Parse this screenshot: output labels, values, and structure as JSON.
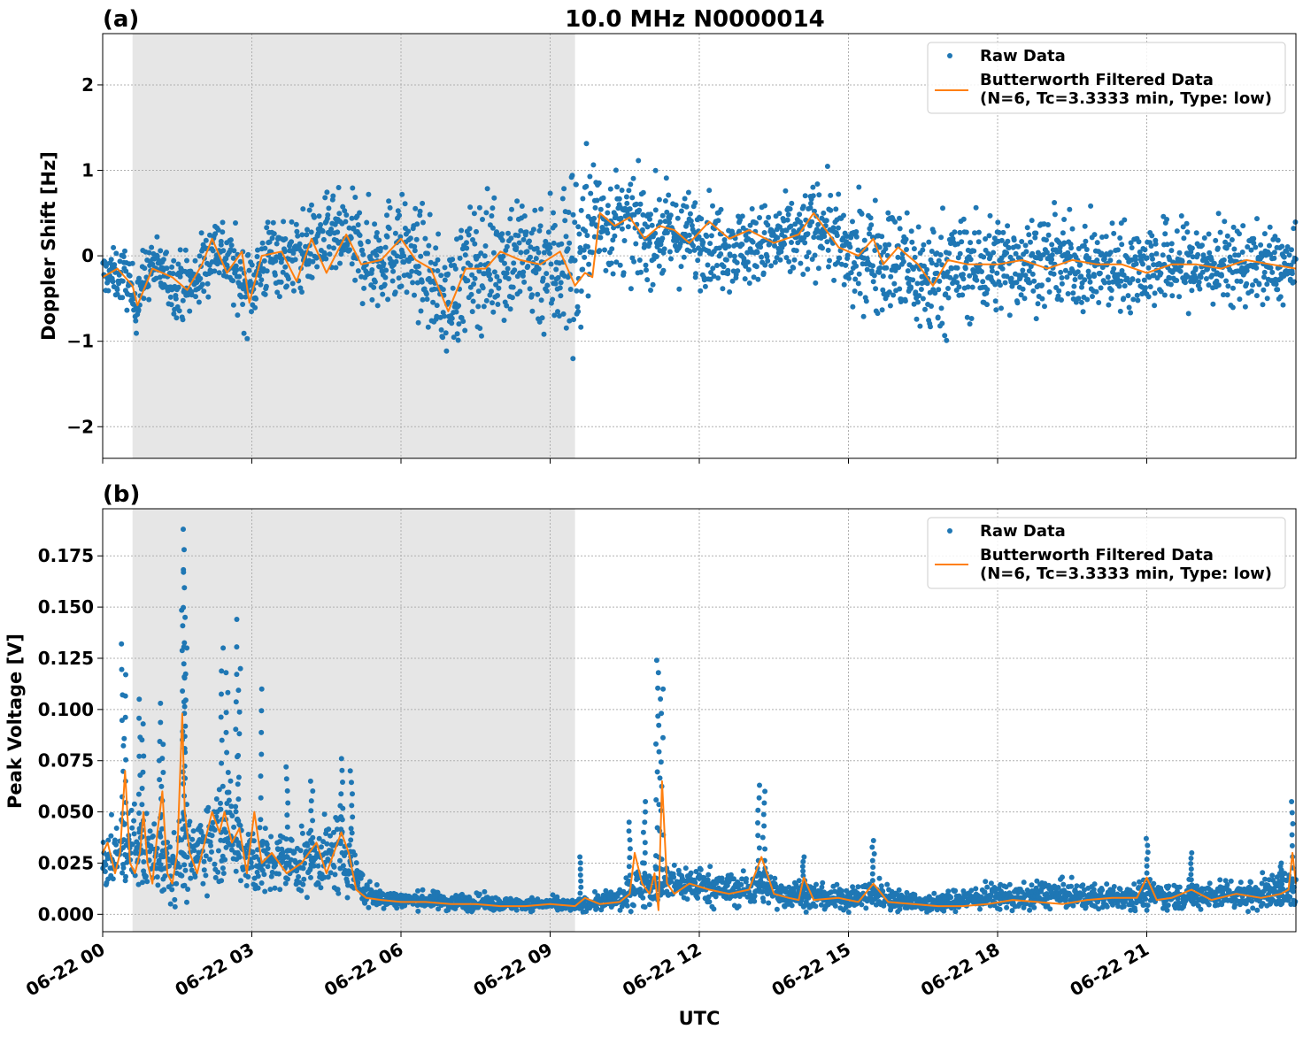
{
  "figure": {
    "title": "10.0 MHz N0000014",
    "xlabel": "UTC",
    "x_tick_labels": [
      "06-22 00",
      "06-22 03",
      "06-22 06",
      "06-22 09",
      "06-22 12",
      "06-22 15",
      "06-22 18",
      "06-22 21"
    ],
    "shaded_region_hours": [
      0.6,
      9.5
    ],
    "colors": {
      "raw": "#1f77b4",
      "filtered": "#ff7f0e",
      "shade": "#e6e6e6",
      "grid": "#b0b0b0"
    }
  },
  "chart_data": [
    {
      "type": "scatter",
      "panel_label": "(a)",
      "ylabel": "Doppler Shift [Hz]",
      "xlim_hours": [
        0,
        24
      ],
      "ylim": [
        -2.37,
        2.6
      ],
      "yticks": [
        -2,
        -1,
        0,
        1,
        2
      ],
      "ytick_labels": [
        "−2",
        "−1",
        "0",
        "1",
        "2"
      ],
      "grid": true,
      "legend": {
        "position": "top-right",
        "raw_label": "Raw Data",
        "filtered_line1": "Butterworth Filtered Data",
        "filtered_line2": "(N=6, Tc=3.3333 min, Type: low)"
      },
      "series": [
        {
          "name": "Raw Data",
          "kind": "scatter",
          "hours": [
            0,
            0.5,
            0.6,
            1.0,
            1.4,
            1.8,
            2.3,
            2.9,
            3.4,
            3.8,
            4.4,
            4.9,
            5.4,
            5.9,
            6.4,
            6.9,
            7.4,
            7.9,
            8.5,
            9.0,
            9.4,
            9.6,
            9.8,
            10.0,
            10.6,
            11.0,
            11.5,
            12.0,
            12.8,
            13.5,
            14.0,
            14.5,
            15.0,
            15.5,
            16.0,
            16.6,
            17.0,
            18.0,
            19.0,
            20.0,
            21.0,
            22.0,
            23.0,
            24.0
          ],
          "center": [
            -0.2,
            -0.25,
            -0.55,
            -0.1,
            -0.3,
            -0.35,
            0.15,
            -0.4,
            0.05,
            -0.05,
            0.2,
            0.2,
            -0.05,
            0.1,
            -0.1,
            -0.55,
            -0.15,
            0.0,
            0.0,
            -0.1,
            0.0,
            -0.05,
            0.45,
            0.4,
            0.35,
            0.25,
            0.25,
            0.2,
            0.1,
            0.15,
            0.2,
            0.4,
            -0.05,
            0.05,
            -0.1,
            -0.3,
            -0.15,
            -0.1,
            -0.05,
            -0.15,
            -0.1,
            -0.1,
            -0.1,
            -0.15
          ],
          "spread": [
            0.22,
            0.35,
            0.4,
            0.3,
            0.35,
            0.4,
            0.4,
            0.45,
            0.45,
            0.45,
            0.45,
            0.5,
            0.6,
            0.6,
            0.6,
            0.6,
            0.7,
            0.75,
            0.75,
            0.85,
            1.1,
            1.2,
            0.75,
            0.65,
            0.55,
            0.55,
            0.5,
            0.5,
            0.45,
            0.45,
            0.5,
            0.5,
            0.55,
            0.6,
            0.65,
            0.7,
            0.65,
            0.55,
            0.5,
            0.5,
            0.5,
            0.5,
            0.45,
            0.4
          ]
        },
        {
          "name": "Butterworth Filtered Data",
          "kind": "line",
          "hours": [
            0,
            0.3,
            0.6,
            0.7,
            1.0,
            1.4,
            1.7,
            2.0,
            2.2,
            2.5,
            2.8,
            2.95,
            3.2,
            3.6,
            3.9,
            4.2,
            4.5,
            4.9,
            5.2,
            5.6,
            6.0,
            6.3,
            6.6,
            6.95,
            7.3,
            7.7,
            8.0,
            8.4,
            8.8,
            9.2,
            9.5,
            9.7,
            9.85,
            10.0,
            10.3,
            10.6,
            10.9,
            11.2,
            11.5,
            11.8,
            12.2,
            12.6,
            13.0,
            13.5,
            14.0,
            14.3,
            14.8,
            15.2,
            15.5,
            15.7,
            16.0,
            16.4,
            16.7,
            17.0,
            17.4,
            18.0,
            18.5,
            19.0,
            19.5,
            20.0,
            20.5,
            21.0,
            21.5,
            22.0,
            22.5,
            23.0,
            23.5,
            24.0
          ],
          "values": [
            -0.25,
            -0.15,
            -0.35,
            -0.58,
            -0.15,
            -0.25,
            -0.4,
            -0.1,
            0.2,
            -0.2,
            0.05,
            -0.55,
            0.0,
            0.05,
            -0.3,
            0.2,
            -0.2,
            0.25,
            -0.1,
            -0.05,
            0.2,
            -0.05,
            -0.15,
            -0.65,
            -0.15,
            -0.15,
            0.05,
            -0.05,
            -0.1,
            0.05,
            -0.35,
            -0.2,
            -0.25,
            0.5,
            0.35,
            0.45,
            0.2,
            0.35,
            0.3,
            0.15,
            0.4,
            0.2,
            0.3,
            0.15,
            0.25,
            0.5,
            0.1,
            0.0,
            0.2,
            -0.1,
            0.1,
            -0.1,
            -0.35,
            -0.05,
            -0.1,
            -0.1,
            -0.05,
            -0.15,
            -0.05,
            -0.1,
            -0.1,
            -0.2,
            -0.1,
            -0.1,
            -0.15,
            -0.05,
            -0.1,
            -0.15
          ]
        }
      ]
    },
    {
      "type": "scatter",
      "panel_label": "(b)",
      "ylabel": "Peak Voltage [V]",
      "xlim_hours": [
        0,
        24
      ],
      "ylim": [
        -0.0085,
        0.198
      ],
      "yticks": [
        0,
        0.025,
        0.05,
        0.075,
        0.1,
        0.125,
        0.15,
        0.175
      ],
      "ytick_labels": [
        "0.000",
        "0.025",
        "0.050",
        "0.075",
        "0.100",
        "0.125",
        "0.150",
        "0.175"
      ],
      "grid": true,
      "legend": {
        "position": "top-right",
        "raw_label": "Raw Data",
        "filtered_line1": "Butterworth Filtered Data",
        "filtered_line2": "(N=6, Tc=3.3333 min, Type: low)"
      },
      "series": [
        {
          "name": "Raw Data",
          "kind": "scatter",
          "hours": [
            0,
            0.3,
            0.5,
            0.8,
            1.0,
            1.2,
            1.45,
            1.6,
            1.8,
            2.0,
            2.3,
            2.6,
            2.9,
            3.2,
            3.6,
            4.0,
            4.4,
            4.8,
            5.0,
            5.3,
            5.6,
            6.0,
            6.5,
            7.0,
            7.5,
            8.0,
            8.5,
            9.0,
            9.5,
            10.0,
            10.5,
            10.8,
            11.0,
            11.3,
            11.6,
            12.0,
            12.5,
            13.0,
            13.3,
            13.6,
            14.0,
            14.5,
            15.0,
            15.5,
            16.0,
            16.5,
            17.0,
            17.5,
            18.0,
            18.5,
            19.0,
            19.5,
            20.0,
            20.5,
            21.0,
            21.5,
            22.0,
            22.5,
            23.0,
            23.5,
            24.0
          ],
          "center": [
            0.025,
            0.03,
            0.035,
            0.03,
            0.03,
            0.028,
            0.025,
            0.03,
            0.025,
            0.035,
            0.04,
            0.04,
            0.03,
            0.025,
            0.025,
            0.025,
            0.028,
            0.03,
            0.025,
            0.01,
            0.008,
            0.007,
            0.007,
            0.006,
            0.006,
            0.005,
            0.005,
            0.005,
            0.004,
            0.006,
            0.008,
            0.015,
            0.015,
            0.015,
            0.015,
            0.015,
            0.012,
            0.012,
            0.015,
            0.01,
            0.01,
            0.008,
            0.008,
            0.01,
            0.007,
            0.005,
            0.006,
            0.008,
            0.009,
            0.008,
            0.01,
            0.009,
            0.008,
            0.009,
            0.01,
            0.009,
            0.009,
            0.01,
            0.01,
            0.011,
            0.012
          ],
          "spread": [
            0.012,
            0.015,
            0.02,
            0.018,
            0.018,
            0.018,
            0.018,
            0.02,
            0.018,
            0.02,
            0.022,
            0.022,
            0.02,
            0.016,
            0.015,
            0.015,
            0.016,
            0.02,
            0.016,
            0.007,
            0.005,
            0.004,
            0.004,
            0.004,
            0.004,
            0.003,
            0.003,
            0.003,
            0.003,
            0.004,
            0.006,
            0.01,
            0.01,
            0.009,
            0.009,
            0.009,
            0.008,
            0.008,
            0.009,
            0.007,
            0.007,
            0.006,
            0.006,
            0.007,
            0.005,
            0.004,
            0.005,
            0.006,
            0.006,
            0.006,
            0.007,
            0.006,
            0.006,
            0.006,
            0.007,
            0.006,
            0.006,
            0.007,
            0.007,
            0.008,
            0.01
          ],
          "spikes": [
            [
              0.4,
              0.132
            ],
            [
              0.45,
              0.117
            ],
            [
              0.75,
              0.105
            ],
            [
              0.8,
              0.093
            ],
            [
              1.15,
              0.103
            ],
            [
              1.2,
              0.083
            ],
            [
              1.6,
              0.188
            ],
            [
              1.62,
              0.178
            ],
            [
              1.63,
              0.167
            ],
            [
              1.65,
              0.145
            ],
            [
              1.67,
              0.13
            ],
            [
              2.4,
              0.13
            ],
            [
              2.5,
              0.118
            ],
            [
              2.7,
              0.144
            ],
            [
              2.75,
              0.12
            ],
            [
              3.2,
              0.11
            ],
            [
              3.7,
              0.072
            ],
            [
              4.2,
              0.065
            ],
            [
              4.8,
              0.076
            ],
            [
              5.0,
              0.07
            ],
            [
              9.6,
              0.028
            ],
            [
              10.6,
              0.045
            ],
            [
              10.9,
              0.055
            ],
            [
              11.15,
              0.124
            ],
            [
              11.2,
              0.118
            ],
            [
              11.25,
              0.11
            ],
            [
              13.2,
              0.063
            ],
            [
              13.3,
              0.06
            ],
            [
              14.1,
              0.028
            ],
            [
              15.5,
              0.036
            ],
            [
              21.0,
              0.037
            ],
            [
              21.9,
              0.03
            ],
            [
              23.7,
              0.025
            ],
            [
              23.93,
              0.055
            ]
          ]
        },
        {
          "name": "Butterworth Filtered Data",
          "kind": "line",
          "hours": [
            0,
            0.1,
            0.25,
            0.35,
            0.45,
            0.55,
            0.65,
            0.75,
            0.82,
            0.9,
            1.0,
            1.1,
            1.2,
            1.3,
            1.4,
            1.5,
            1.6,
            1.65,
            1.75,
            1.9,
            2.0,
            2.2,
            2.35,
            2.45,
            2.6,
            2.75,
            2.9,
            3.05,
            3.2,
            3.4,
            3.7,
            4.0,
            4.3,
            4.5,
            4.8,
            4.95,
            5.1,
            5.3,
            5.6,
            6.0,
            6.5,
            7.0,
            7.5,
            8.0,
            8.5,
            9.0,
            9.5,
            9.7,
            10.0,
            10.4,
            10.6,
            10.7,
            10.85,
            11.0,
            11.1,
            11.18,
            11.25,
            11.35,
            11.5,
            11.8,
            12.2,
            12.6,
            13.0,
            13.25,
            13.5,
            13.8,
            14.0,
            14.1,
            14.3,
            14.8,
            15.2,
            15.5,
            15.8,
            16.3,
            16.8,
            17.3,
            17.8,
            18.3,
            18.8,
            19.3,
            19.8,
            20.3,
            20.8,
            21.0,
            21.2,
            21.5,
            21.9,
            22.3,
            22.8,
            23.3,
            23.7,
            23.85,
            23.93,
            24.0
          ],
          "values": [
            0.03,
            0.035,
            0.02,
            0.03,
            0.07,
            0.025,
            0.02,
            0.03,
            0.05,
            0.025,
            0.015,
            0.04,
            0.06,
            0.02,
            0.015,
            0.03,
            0.098,
            0.05,
            0.03,
            0.02,
            0.03,
            0.05,
            0.04,
            0.05,
            0.035,
            0.042,
            0.02,
            0.05,
            0.025,
            0.03,
            0.02,
            0.025,
            0.035,
            0.02,
            0.04,
            0.03,
            0.012,
            0.008,
            0.007,
            0.006,
            0.006,
            0.005,
            0.005,
            0.004,
            0.004,
            0.005,
            0.004,
            0.008,
            0.005,
            0.006,
            0.01,
            0.03,
            0.015,
            0.01,
            0.02,
            0.002,
            0.065,
            0.015,
            0.01,
            0.015,
            0.012,
            0.01,
            0.012,
            0.028,
            0.01,
            0.008,
            0.007,
            0.018,
            0.007,
            0.008,
            0.006,
            0.015,
            0.006,
            0.005,
            0.004,
            0.004,
            0.005,
            0.007,
            0.006,
            0.005,
            0.007,
            0.008,
            0.008,
            0.018,
            0.007,
            0.008,
            0.012,
            0.007,
            0.01,
            0.008,
            0.01,
            0.012,
            0.03,
            0.015
          ]
        }
      ]
    }
  ]
}
